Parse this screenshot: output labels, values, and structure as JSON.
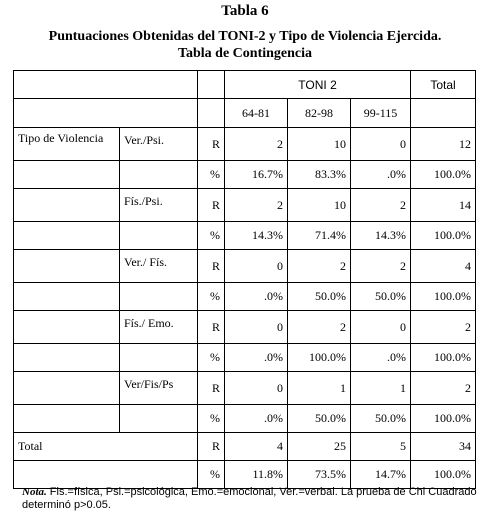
{
  "title": "Tabla 6",
  "subtitle_line1": "Puntuaciones Obtenidas del TONI-2 y Tipo de Violencia Ejercida.",
  "subtitle_line2": "Tabla de Contingencia",
  "header": {
    "group": "TONI 2",
    "total": "Total"
  },
  "ranges": [
    "64-81",
    "82-98",
    "99-115"
  ],
  "category_label": "Tipo de Violencia",
  "rows": [
    {
      "cat": "Ver./Psi.",
      "r": {
        "tag": "R",
        "v": [
          "2",
          "10",
          "0",
          "12"
        ]
      },
      "p": {
        "tag": "%",
        "v": [
          "16.7%",
          "83.3%",
          ".0%",
          "100.0%"
        ]
      }
    },
    {
      "cat": "Fís./Psi.",
      "r": {
        "tag": "R",
        "v": [
          "2",
          "10",
          "2",
          "14"
        ]
      },
      "p": {
        "tag": "%",
        "v": [
          "14.3%",
          "71.4%",
          "14.3%",
          "100.0%"
        ]
      }
    },
    {
      "cat": "Ver./ Fís.",
      "r": {
        "tag": "R",
        "v": [
          "0",
          "2",
          "2",
          "4"
        ]
      },
      "p": {
        "tag": "%",
        "v": [
          ".0%",
          "50.0%",
          "50.0%",
          "100.0%"
        ]
      }
    },
    {
      "cat": "Fís./ Emo.",
      "r": {
        "tag": "R",
        "v": [
          "0",
          "2",
          "0",
          "2"
        ]
      },
      "p": {
        "tag": "%",
        "v": [
          ".0%",
          "100.0%",
          ".0%",
          "100.0%"
        ]
      }
    },
    {
      "cat": "Ver/Fis/Ps",
      "r": {
        "tag": "R",
        "v": [
          "0",
          "1",
          "1",
          "2"
        ]
      },
      "p": {
        "tag": "%",
        "v": [
          ".0%",
          "50.0%",
          "50.0%",
          "100.0%"
        ]
      }
    }
  ],
  "total_row": {
    "label": "Total",
    "r": {
      "tag": "R",
      "v": [
        "4",
        "25",
        "5",
        "34"
      ]
    },
    "p": {
      "tag": "%",
      "v": [
        "11.8%",
        "73.5%",
        "14.7%",
        "100.0%"
      ]
    }
  },
  "note": {
    "lead": "Nota.",
    "text": " Fis.=física, Psi.=psicológica, Emo.=emocional, Ver.=verbal. La prueba de Chi Cuadrado determinó p>0.05."
  }
}
